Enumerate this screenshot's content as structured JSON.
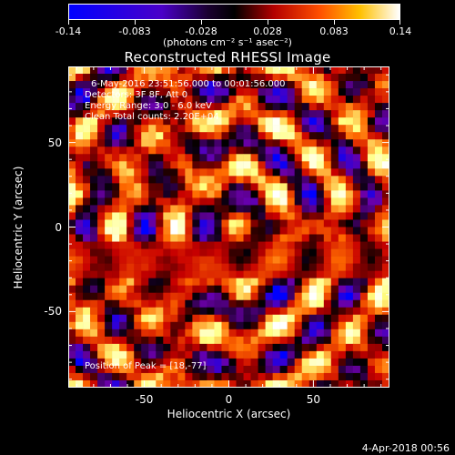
{
  "colorbar": {
    "tick_labels": [
      "-0.14",
      "-0.083",
      "-0.028",
      "0.028",
      "0.083",
      "0.14"
    ],
    "units": "(photons cm⁻² s⁻¹ asec⁻²)",
    "min": -0.14,
    "max": 0.14
  },
  "title": "Reconstructed RHESSI Image",
  "annotations": {
    "time_range": "6-May-2016 23:51:56.000 to 00:01:56.000",
    "detectors": "Detectors: 3F 8F, Att 0",
    "energy": "Energy Range: 3.0 - 6.0 keV",
    "method": "Clean     Total counts: 2.20E+04",
    "peak": "Position of Peak = [18,-77]"
  },
  "timestamp": "4-Apr-2018 00:56",
  "chart_data": {
    "type": "heatmap",
    "title": "Reconstructed RHESSI Image",
    "xlabel": "Heliocentric X (arcsec)",
    "ylabel": "Heliocentric Y (arcsec)",
    "xlim": [
      -95,
      95
    ],
    "ylim": [
      -95,
      95
    ],
    "xticks": [
      "-50",
      "0",
      "50"
    ],
    "yticks": [
      "50",
      "0",
      "-50"
    ],
    "xtick_values": [
      -50,
      0,
      50
    ],
    "ytick_values": [
      50,
      0,
      -50
    ],
    "colorscale": [
      "#0000ff",
      "#6a00a8",
      "#000000",
      "#c80000",
      "#ff6a00",
      "#ffff80",
      "#ffffff"
    ],
    "value_range": [
      -0.14,
      0.14
    ],
    "peak_position": [
      18,
      -77
    ]
  }
}
